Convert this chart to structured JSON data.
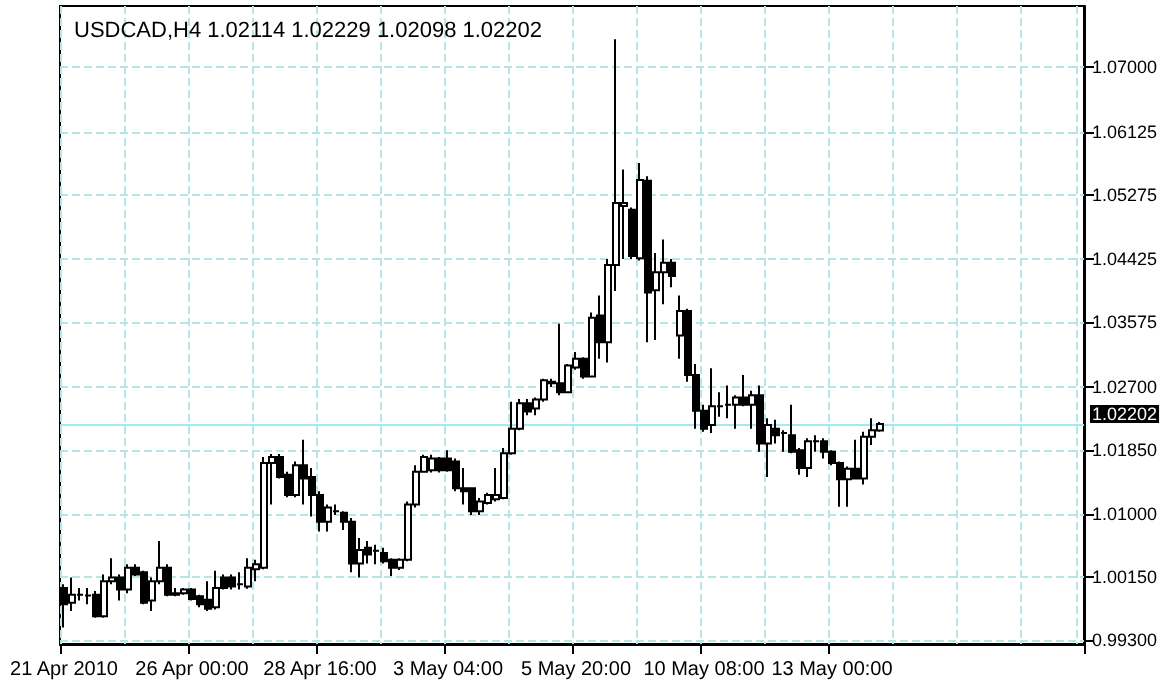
{
  "chart_data": {
    "type": "candlestick",
    "title": "USDCAD,H4 1.02114 1.02229 1.02098 1.02202",
    "color": "#000000",
    "grid": true,
    "categories": [
      "21 Apr 2010",
      null,
      null,
      null,
      null,
      null,
      null,
      null,
      null,
      null,
      null,
      null,
      null,
      null,
      null,
      null,
      "26 Apr 00:00",
      null,
      null,
      null,
      null,
      null,
      null,
      null,
      null,
      null,
      null,
      null,
      null,
      null,
      null,
      null,
      "28 Apr 16:00",
      null,
      null,
      null,
      null,
      null,
      null,
      null,
      null,
      null,
      null,
      null,
      null,
      null,
      null,
      null,
      "3 May 04:00",
      null,
      null,
      null,
      null,
      null,
      null,
      null,
      null,
      null,
      null,
      null,
      null,
      null,
      null,
      null,
      "5 May 20:00",
      null,
      null,
      null,
      null,
      null,
      null,
      null,
      null,
      null,
      null,
      null,
      null,
      null,
      null,
      null,
      "10 May 08:00",
      null,
      null,
      null,
      null,
      null,
      null,
      null,
      null,
      null,
      null,
      null,
      null,
      null,
      null,
      null,
      "13 May 00:00",
      null,
      null,
      null,
      null,
      null,
      null,
      null,
      null,
      null,
      null,
      null,
      null,
      null,
      null,
      null,
      null,
      null,
      null,
      null,
      null,
      null,
      null,
      null,
      null,
      null,
      null,
      null,
      null,
      null,
      null,
      null
    ],
    "ohlc": [
      [
        1.0,
        1.0005,
        0.9947,
        0.9978
      ],
      [
        0.998,
        1.0014,
        0.9969,
        0.9991
      ],
      [
        0.9991,
        1.0,
        0.9983,
        0.9991
      ],
      [
        0.999,
        1.0,
        0.9978,
        0.999
      ],
      [
        0.9991,
        0.9996,
        0.996,
        0.9962
      ],
      [
        0.9962,
        1.0018,
        0.996,
        1.0009
      ],
      [
        1.0009,
        1.004,
        1.0005,
        1.0014
      ],
      [
        1.0014,
        1.0018,
        0.9983,
        0.9998
      ],
      [
        0.9998,
        1.0032,
        0.9993,
        1.0027
      ],
      [
        1.0027,
        1.0032,
        1.0016,
        1.0018
      ],
      [
        1.0021,
        1.0023,
        0.9978,
        0.998
      ],
      [
        0.9983,
        1.0014,
        0.9969,
        1.0009
      ],
      [
        1.0009,
        1.0063,
        1.0005,
        1.0027
      ],
      [
        1.0027,
        1.0032,
        0.9989,
        0.9991
      ],
      [
        0.9991,
        1.0,
        0.9989,
        0.9993
      ],
      [
        0.9993,
        1.0,
        0.9991,
        0.9998
      ],
      [
        0.9998,
        1.0,
        0.9983,
        0.9985
      ],
      [
        0.9989,
        0.9991,
        0.9974,
        0.9978
      ],
      [
        0.9984,
        1.0009,
        0.9969,
        0.9972
      ],
      [
        0.9974,
        1.0023,
        0.9971,
        1.0
      ],
      [
        1.0014,
        1.0018,
        0.9998,
        1.0
      ],
      [
        1.0014,
        1.0018,
        0.9998,
        1.0002
      ],
      [
        1.0005,
        1.0021,
        0.9998,
        1.0005
      ],
      [
        1.0002,
        1.004,
        0.9999,
        1.0027
      ],
      [
        1.0025,
        1.0038,
        1.0009,
        1.0032
      ],
      [
        1.0027,
        1.0176,
        1.0025,
        1.0168
      ],
      [
        1.0168,
        1.018,
        1.0112,
        1.0176
      ],
      [
        1.0176,
        1.018,
        1.0147,
        1.0149
      ],
      [
        1.0152,
        1.0156,
        1.0122,
        1.0125
      ],
      [
        1.0125,
        1.017,
        1.0122,
        1.0165
      ],
      [
        1.0165,
        1.0199,
        1.0112,
        1.0147
      ],
      [
        1.0149,
        1.0161,
        1.0096,
        1.0125
      ],
      [
        1.0125,
        1.013,
        1.0076,
        1.0089
      ],
      [
        1.0089,
        1.0112,
        1.0076,
        1.0108
      ],
      [
        1.0103,
        1.0112,
        1.0098,
        1.0103
      ],
      [
        1.0101,
        1.0103,
        1.0078,
        1.0089
      ],
      [
        1.0089,
        1.0094,
        1.0021,
        1.0033
      ],
      [
        1.0033,
        1.0067,
        1.0014,
        1.0051
      ],
      [
        1.0054,
        1.0063,
        1.0033,
        1.0045
      ],
      [
        1.005,
        1.0058,
        1.0032,
        1.005
      ],
      [
        1.0047,
        1.0054,
        1.0033,
        1.0036
      ],
      [
        1.0038,
        1.004,
        1.0016,
        1.0027
      ],
      [
        1.0027,
        1.004,
        1.0024,
        1.0038
      ],
      [
        1.0038,
        1.0116,
        1.0036,
        1.0112
      ],
      [
        1.0112,
        1.0165,
        1.0108,
        1.0156
      ],
      [
        1.0156,
        1.0179,
        1.0155,
        1.0176
      ],
      [
        1.0158,
        1.0179,
        1.0155,
        1.0174
      ],
      [
        1.0174,
        1.0176,
        1.0155,
        1.0158
      ],
      [
        1.0174,
        1.0185,
        1.0156,
        1.0158
      ],
      [
        1.017,
        1.0174,
        1.013,
        1.0134
      ],
      [
        1.0134,
        1.0161,
        1.0112,
        1.013
      ],
      [
        1.0134,
        1.0134,
        1.0098,
        1.0103
      ],
      [
        1.0103,
        1.0121,
        1.0098,
        1.0116
      ],
      [
        1.0114,
        1.0128,
        1.0112,
        1.0125
      ],
      [
        1.0119,
        1.0161,
        1.0116,
        1.0125
      ],
      [
        1.0121,
        1.0188,
        1.0119,
        1.0181
      ],
      [
        1.0181,
        1.025,
        1.0179,
        1.0214
      ],
      [
        1.0214,
        1.0254,
        1.0212,
        1.0248
      ],
      [
        1.0248,
        1.0254,
        1.0232,
        1.0237
      ],
      [
        1.0241,
        1.0256,
        1.0232,
        1.0253
      ],
      [
        1.0253,
        1.0281,
        1.025,
        1.0279
      ],
      [
        1.0277,
        1.0281,
        1.027,
        1.0275
      ],
      [
        1.0275,
        1.0355,
        1.0259,
        1.0263
      ],
      [
        1.0263,
        1.0301,
        1.0262,
        1.0299
      ],
      [
        1.0296,
        1.0317,
        1.0293,
        1.0308
      ],
      [
        1.0308,
        1.031,
        1.0281,
        1.0284
      ],
      [
        1.0284,
        1.037,
        1.0283,
        1.0363
      ],
      [
        1.0366,
        1.0393,
        1.0308,
        1.033
      ],
      [
        1.033,
        1.0442,
        1.0303,
        1.0434
      ],
      [
        1.0434,
        1.0737,
        1.0399,
        1.0517
      ],
      [
        1.0513,
        1.0562,
        1.0442,
        1.0517
      ],
      [
        1.0508,
        1.0511,
        1.0442,
        1.0446
      ],
      [
        1.0443,
        1.0571,
        1.044,
        1.0548
      ],
      [
        1.0547,
        1.0553,
        1.033,
        1.0397
      ],
      [
        1.04,
        1.045,
        1.0333,
        1.0424
      ],
      [
        1.0424,
        1.0468,
        1.0381,
        1.0437
      ],
      [
        1.0437,
        1.0442,
        1.0404,
        1.0419
      ],
      [
        1.0339,
        1.0393,
        1.0308,
        1.0372
      ],
      [
        1.0372,
        1.0375,
        1.0277,
        1.0286
      ],
      [
        1.0286,
        1.0301,
        1.0214,
        1.0238
      ],
      [
        1.0238,
        1.0246,
        1.021,
        1.0214
      ],
      [
        1.0219,
        1.0295,
        1.0208,
        1.0244
      ],
      [
        1.0244,
        1.0263,
        1.023,
        1.0244
      ],
      [
        1.0246,
        1.0272,
        1.0228,
        1.0246
      ],
      [
        1.0246,
        1.0259,
        1.0214,
        1.0256
      ],
      [
        1.0256,
        1.0286,
        1.0244,
        1.0246
      ],
      [
        1.0246,
        1.0265,
        1.0214,
        1.0259
      ],
      [
        1.0259,
        1.0272,
        1.0183,
        1.0194
      ],
      [
        1.0194,
        1.0228,
        1.0149,
        1.0219
      ],
      [
        1.0214,
        1.0226,
        1.0194,
        1.0205
      ],
      [
        1.0208,
        1.0212,
        1.0183,
        1.0208
      ],
      [
        1.0205,
        1.0246,
        1.0181,
        1.0183
      ],
      [
        1.0185,
        1.0188,
        1.0152,
        1.0161
      ],
      [
        1.0161,
        1.0201,
        1.0149,
        1.0197
      ],
      [
        1.0197,
        1.0205,
        1.0183,
        1.0197
      ],
      [
        1.0197,
        1.0201,
        1.0174,
        1.0183
      ],
      [
        1.0183,
        1.0185,
        1.0165,
        1.0168
      ],
      [
        1.0168,
        1.017,
        1.0109,
        1.0146
      ],
      [
        1.0146,
        1.0163,
        1.0109,
        1.016
      ],
      [
        1.016,
        1.0199,
        1.0146,
        1.0147
      ],
      [
        1.0147,
        1.021,
        1.0139,
        1.0203
      ],
      [
        1.0203,
        1.0228,
        1.0192,
        1.0212
      ],
      [
        1.02114,
        1.02229,
        1.02098,
        1.02202
      ],
      null,
      null,
      null,
      null,
      null,
      null,
      null,
      null,
      null,
      null,
      null,
      null,
      null,
      null,
      null,
      null,
      null,
      null,
      null,
      null,
      null,
      null,
      null,
      null,
      null
    ],
    "ylim": [
      0.99247,
      1.07818
    ],
    "yticks": [
      {
        "value": 0.993,
        "label": "0.99300"
      },
      {
        "value": 1.0015,
        "label": "1.00150"
      },
      {
        "value": 1.01,
        "label": "1.01000"
      },
      {
        "value": 1.0185,
        "label": "1.01850"
      },
      {
        "value": 1.027,
        "label": "1.02700"
      },
      {
        "value": 1.03575,
        "label": "1.03575"
      },
      {
        "value": 1.04425,
        "label": "1.04425"
      },
      {
        "value": 1.05275,
        "label": "1.05275"
      },
      {
        "value": 1.06125,
        "label": "1.06125"
      },
      {
        "value": 1.07,
        "label": "1.07000"
      }
    ],
    "ref_lines": [
      {
        "axis": "y",
        "value": 1.02202,
        "label": "1.02202",
        "color": "#a0eaf0"
      }
    ]
  }
}
